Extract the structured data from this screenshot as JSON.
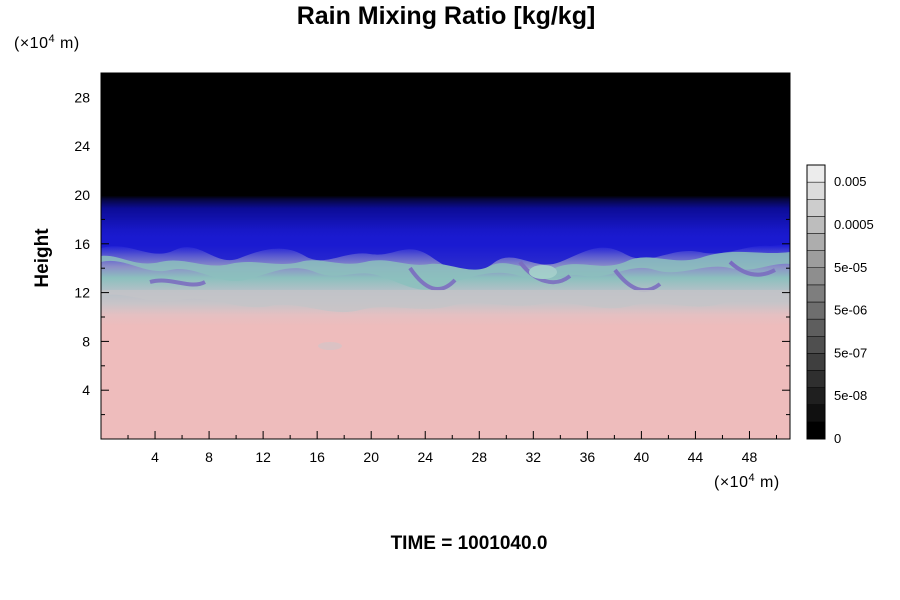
{
  "chart_data": {
    "type": "heatmap",
    "title": "Rain Mixing Ratio [kg/kg]",
    "ylabel": "Height",
    "x_unit": {
      "prefix": "(×10",
      "exp": "4",
      "suffix": " m)"
    },
    "y_unit": {
      "prefix": "(×10",
      "exp": "4",
      "suffix": " m)"
    },
    "xlim": [
      0,
      51
    ],
    "ylim": [
      0,
      30
    ],
    "x_ticks": [
      4,
      8,
      12,
      16,
      20,
      24,
      28,
      32,
      36,
      40,
      44,
      48
    ],
    "y_ticks": [
      4,
      8,
      12,
      16,
      20,
      24,
      28
    ],
    "x_minor_step": 2,
    "y_minor_step": 2,
    "field_layers": {
      "upper_black_above_height": 20,
      "blue_band": [
        15,
        20
      ],
      "cyan_gray_band": [
        11,
        15
      ],
      "pink_below_height": 11
    },
    "colorbar": {
      "labels": [
        "0",
        "5e-08",
        "5e-07",
        "5e-06",
        "5e-05",
        "0.0005",
        "0.005"
      ],
      "levels": 16
    },
    "footer": "TIME = 1001040.0"
  },
  "colors": {
    "background": "#000000",
    "blue_dark": "#0a0a8c",
    "blue": "#1e1ed2",
    "periwinkle": "#6a6ac8",
    "cyan_gray": "#8cc0be",
    "gray": "#bcbcbc",
    "pink": "#eebcbc"
  }
}
